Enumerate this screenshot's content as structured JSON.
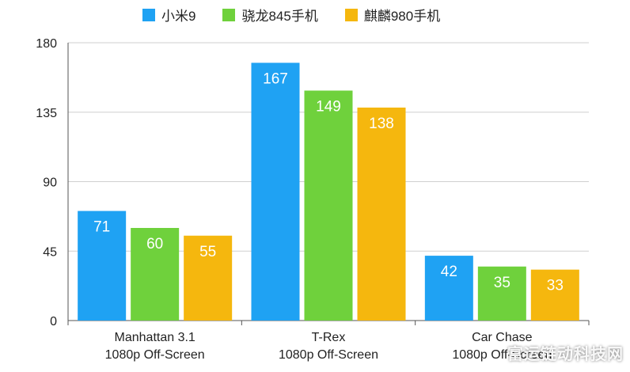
{
  "chart_data": {
    "type": "bar",
    "categories": [
      [
        "Manhattan 3.1",
        "1080p Off-Screen"
      ],
      [
        "T-Rex",
        "1080p Off-Screen"
      ],
      [
        "Car Chase",
        "1080p Off-Screen"
      ]
    ],
    "series": [
      {
        "name": "小米9",
        "color": "#1fa2f3",
        "values": [
          71,
          167,
          42
        ]
      },
      {
        "name": "骁龙845手机",
        "color": "#6fd13c",
        "values": [
          60,
          149,
          35
        ]
      },
      {
        "name": "麒麟980手机",
        "color": "#f5b70e",
        "values": [
          55,
          138,
          33
        ]
      }
    ],
    "ylim": [
      0,
      180
    ],
    "yticks": [
      0,
      45,
      90,
      135,
      180
    ],
    "grid": true,
    "legend_position": "top"
  },
  "watermark": "富运链动科技网"
}
